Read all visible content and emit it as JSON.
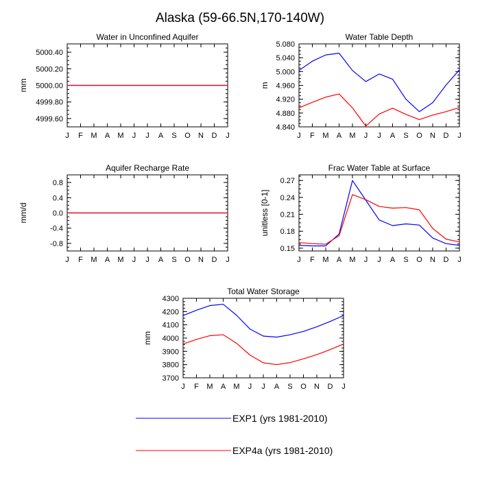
{
  "title": "Alaska (59-66.5N,170-140W)",
  "months": [
    "J",
    "F",
    "M",
    "A",
    "M",
    "J",
    "J",
    "A",
    "S",
    "O",
    "N",
    "D",
    "J"
  ],
  "colors": {
    "EXP1": "#0000ff",
    "EXP4a": "#ff0000",
    "axis": "#000000"
  },
  "legend": [
    {
      "key": "EXP1",
      "label": "EXP1 (yrs 1981-2010)"
    },
    {
      "key": "EXP4a",
      "label": "EXP4a (yrs 1981-2010)"
    }
  ],
  "chart_data": [
    {
      "id": "water-unconfined",
      "type": "line",
      "title": "Water in Unconfined Aquifer",
      "ylabel": "mm",
      "ylim": [
        4999.5,
        5000.5
      ],
      "yticks": [
        4999.6,
        4999.8,
        5000.0,
        5000.2,
        5000.4
      ],
      "ytick_labels": [
        "4999.60",
        "4999.80",
        "5000.00",
        "5000.20",
        "5000.40"
      ],
      "series": [
        {
          "name": "EXP1",
          "values": [
            5000,
            5000,
            5000,
            5000,
            5000,
            5000,
            5000,
            5000,
            5000,
            5000,
            5000,
            5000,
            5000
          ]
        },
        {
          "name": "EXP4a",
          "values": [
            5000,
            5000,
            5000,
            5000,
            5000,
            5000,
            5000,
            5000,
            5000,
            5000,
            5000,
            5000,
            5000
          ]
        }
      ]
    },
    {
      "id": "water-table-depth",
      "type": "line",
      "title": "Water Table Depth",
      "ylabel": "m",
      "ylim": [
        4.84,
        5.08
      ],
      "yticks": [
        4.84,
        4.88,
        4.92,
        4.96,
        5.0,
        5.04,
        5.08
      ],
      "ytick_labels": [
        "4.840",
        "4.880",
        "4.920",
        "4.960",
        "5.000",
        "5.040",
        "5.080"
      ],
      "series": [
        {
          "name": "EXP1",
          "values": [
            5.003,
            5.03,
            5.048,
            5.053,
            5.003,
            4.971,
            4.993,
            4.978,
            4.92,
            4.884,
            4.91,
            4.961,
            5.005
          ]
        },
        {
          "name": "EXP4a",
          "values": [
            4.895,
            4.911,
            4.926,
            4.935,
            4.895,
            4.842,
            4.877,
            4.894,
            4.876,
            4.861,
            4.874,
            4.884,
            4.896
          ]
        }
      ]
    },
    {
      "id": "aquifer-recharge",
      "type": "line",
      "title": "Aquifer Recharge Rate",
      "ylabel": "mm/d",
      "ylim": [
        -1.0,
        1.0
      ],
      "yticks": [
        -0.8,
        -0.4,
        0.0,
        0.4,
        0.8
      ],
      "ytick_labels": [
        "-0.8",
        "-0.4",
        "0.0",
        "0.4",
        "0.8"
      ],
      "series": [
        {
          "name": "EXP1",
          "values": [
            0,
            0,
            0,
            0,
            0,
            0,
            0,
            0,
            0,
            0,
            0,
            0,
            0
          ]
        },
        {
          "name": "EXP4a",
          "values": [
            0,
            0,
            0,
            0,
            0,
            0,
            0,
            0,
            0,
            0,
            0,
            0,
            0
          ]
        }
      ]
    },
    {
      "id": "frac-water-table",
      "type": "line",
      "title": "Frac Water Table at Surface",
      "ylabel": "unitless [0-1]",
      "ylim": [
        0.145,
        0.28
      ],
      "yticks": [
        0.15,
        0.18,
        0.21,
        0.24,
        0.27
      ],
      "ytick_labels": [
        "0.15",
        "0.18",
        "0.21",
        "0.24",
        "0.27"
      ],
      "series": [
        {
          "name": "EXP1",
          "values": [
            0.155,
            0.154,
            0.154,
            0.175,
            0.27,
            0.235,
            0.2,
            0.19,
            0.193,
            0.191,
            0.168,
            0.158,
            0.155
          ]
        },
        {
          "name": "EXP4a",
          "values": [
            0.16,
            0.158,
            0.157,
            0.172,
            0.245,
            0.236,
            0.224,
            0.221,
            0.222,
            0.218,
            0.185,
            0.166,
            0.161
          ]
        }
      ]
    },
    {
      "id": "total-water-storage",
      "type": "line",
      "title": "Total Water Storage",
      "ylabel": "mm",
      "ylim": [
        3700,
        4300
      ],
      "yticks": [
        3700,
        3800,
        3900,
        4000,
        4100,
        4200,
        4300
      ],
      "ytick_labels": [
        "3700",
        "3800",
        "3900",
        "4000",
        "4100",
        "4200",
        "4300"
      ],
      "series": [
        {
          "name": "EXP1",
          "values": [
            4170,
            4210,
            4245,
            4255,
            4172,
            4068,
            4015,
            4007,
            4025,
            4050,
            4085,
            4125,
            4170
          ]
        },
        {
          "name": "EXP4a",
          "values": [
            3955,
            3990,
            4018,
            4025,
            3960,
            3872,
            3813,
            3800,
            3815,
            3843,
            3875,
            3913,
            3955
          ]
        }
      ]
    }
  ]
}
